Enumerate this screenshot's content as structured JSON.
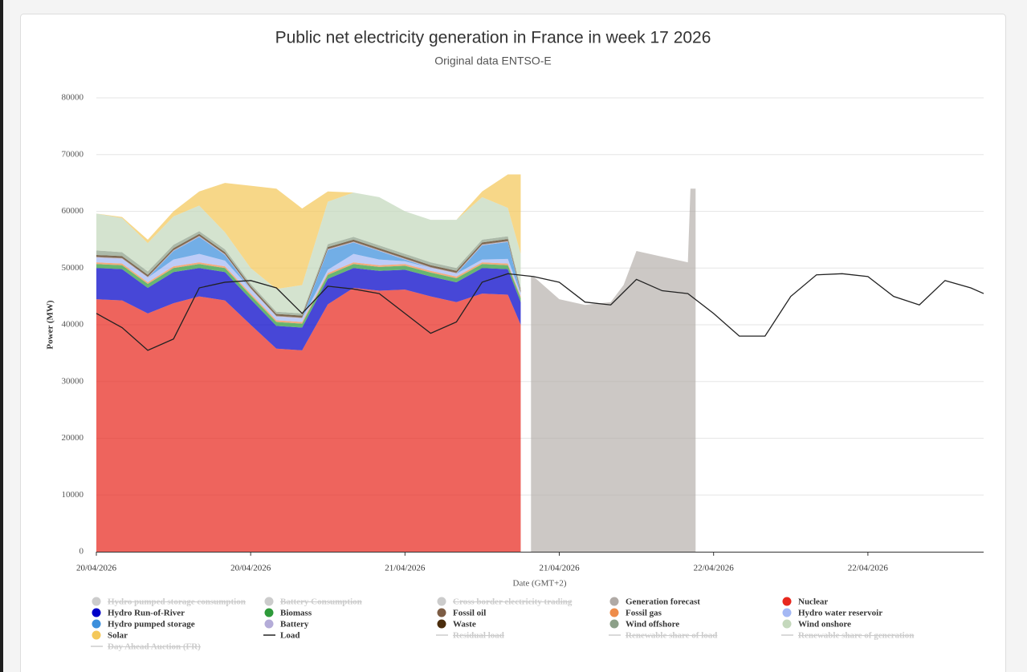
{
  "chart_data": {
    "type": "stacked_area",
    "title": "Public net electricity generation in France in week 17 2026",
    "subtitle": "Original data ENTSO-E",
    "y_label": "Power (MW)",
    "x_label": "Date (GMT+2)",
    "ylim": [
      0,
      80000
    ],
    "yticks": [
      0,
      10000,
      20000,
      30000,
      40000,
      50000,
      60000,
      70000,
      80000
    ],
    "xlim": [
      0,
      69
    ],
    "xticks": [
      {
        "value": 0,
        "label": "20/04/2026"
      },
      {
        "value": 12,
        "label": "20/04/2026"
      },
      {
        "value": 24,
        "label": "21/04/2026"
      },
      {
        "value": 36,
        "label": "21/04/2026"
      },
      {
        "value": 48,
        "label": "22/04/2026"
      },
      {
        "value": 60,
        "label": "22/04/2026"
      }
    ],
    "grid": true,
    "x": [
      0,
      2,
      4,
      6,
      8,
      10,
      12,
      14,
      16,
      18,
      20,
      22,
      24,
      26,
      28,
      30,
      32,
      33
    ],
    "series": [
      {
        "name": "Nuclear",
        "color": "#e8281e",
        "values": [
          44500,
          44300,
          42000,
          43800,
          45000,
          44300,
          40000,
          35800,
          35500,
          43600,
          46500,
          46000,
          46200,
          45000,
          44000,
          45500,
          45300,
          40000
        ]
      },
      {
        "name": "Hydro Run-of-River",
        "color": "#0000c8",
        "values": [
          5500,
          5500,
          4500,
          5500,
          5000,
          5000,
          4500,
          4000,
          4000,
          4500,
          3500,
          3500,
          3500,
          3500,
          3500,
          4500,
          4500,
          4000
        ]
      },
      {
        "name": "Biomass",
        "color": "#2e9a3a",
        "values": [
          700,
          700,
          700,
          700,
          700,
          700,
          700,
          700,
          700,
          700,
          700,
          700,
          700,
          700,
          700,
          700,
          700,
          700
        ]
      },
      {
        "name": "Fossil gas",
        "color": "#ee8c4a",
        "values": [
          300,
          300,
          300,
          300,
          300,
          300,
          300,
          300,
          300,
          300,
          300,
          300,
          300,
          300,
          300,
          300,
          300,
          300
        ]
      },
      {
        "name": "Hydro water reservoir",
        "color": "#a4b8f4",
        "values": [
          800,
          800,
          800,
          1200,
          1500,
          1000,
          800,
          600,
          600,
          600,
          1500,
          1000,
          500,
          500,
          500,
          500,
          800,
          500
        ]
      },
      {
        "name": "Hydro pumped storage",
        "color": "#3c8fdc",
        "values": [
          0,
          0,
          0,
          1500,
          3000,
          1000,
          0,
          0,
          0,
          3500,
          2000,
          1500,
          300,
          0,
          0,
          2500,
          3000,
          0
        ]
      },
      {
        "name": "Battery",
        "color": "#b4acd8",
        "values": [
          100,
          100,
          100,
          100,
          100,
          100,
          100,
          100,
          100,
          100,
          100,
          100,
          100,
          100,
          100,
          100,
          100,
          100
        ]
      },
      {
        "name": "Fossil oil",
        "color": "#7c5c44",
        "values": [
          100,
          100,
          100,
          100,
          100,
          100,
          100,
          100,
          100,
          100,
          100,
          100,
          100,
          100,
          100,
          100,
          100,
          100
        ]
      },
      {
        "name": "Waste",
        "color": "#4a2c0c",
        "values": [
          300,
          300,
          300,
          300,
          300,
          300,
          300,
          300,
          300,
          300,
          300,
          300,
          300,
          300,
          300,
          300,
          300,
          300
        ]
      },
      {
        "name": "Wind offshore",
        "color": "#8ca088",
        "values": [
          800,
          700,
          600,
          600,
          500,
          500,
          400,
          400,
          400,
          500,
          500,
          500,
          500,
          500,
          500,
          500,
          500,
          500
        ]
      },
      {
        "name": "Wind onshore",
        "color": "#c4d8bc",
        "values": [
          6500,
          6000,
          5000,
          5000,
          4500,
          3000,
          2800,
          4000,
          5000,
          7500,
          7800,
          8500,
          7500,
          7500,
          8500,
          7500,
          5000,
          6000
        ]
      },
      {
        "name": "Solar",
        "color": "#f4c85a",
        "values": [
          0,
          200,
          600,
          900,
          2500,
          8700,
          14500,
          17700,
          13500,
          1800,
          0,
          0,
          0,
          0,
          0,
          1000,
          5900,
          14000
        ]
      }
    ],
    "forecast": {
      "name": "Generation forecast",
      "color": "#b0aaa6",
      "x": [
        33.8,
        34,
        36,
        38,
        40,
        41,
        42,
        44,
        46,
        46.2,
        46.6
      ],
      "values": [
        48500,
        48500,
        44500,
        43500,
        44000,
        47000,
        53000,
        52000,
        51000,
        64000,
        64000
      ]
    },
    "load": {
      "name": "Load",
      "color": "#222222",
      "x": [
        0,
        2,
        4,
        6,
        8,
        10,
        12,
        14,
        16,
        18,
        20,
        22,
        24,
        26,
        28,
        30,
        32,
        34,
        36,
        38,
        40,
        42,
        44,
        46,
        48,
        50,
        52,
        54,
        56,
        58,
        60,
        62,
        64,
        66,
        68,
        69
      ],
      "values": [
        42000,
        39500,
        35500,
        37500,
        46500,
        47500,
        47800,
        46500,
        42000,
        46800,
        46300,
        45500,
        42000,
        38500,
        40500,
        47500,
        49000,
        48500,
        47500,
        44000,
        43500,
        48000,
        46000,
        45500,
        42000,
        38000,
        38000,
        45000,
        48800,
        49000,
        48500,
        45000,
        43500,
        47800,
        46500,
        45500
      ]
    },
    "legend": [
      {
        "name": "Hydro pumped storage consumption",
        "color": "#cccccc",
        "symbol": "dot",
        "hidden": true
      },
      {
        "name": "Battery Consumption",
        "color": "#cccccc",
        "symbol": "dot",
        "hidden": true
      },
      {
        "name": "Cross border electricity trading",
        "color": "#cccccc",
        "symbol": "dot",
        "hidden": true
      },
      {
        "name": "Generation forecast",
        "color": "#b0aaa6",
        "symbol": "dot",
        "hidden": false
      },
      {
        "name": "Nuclear",
        "color": "#e8281e",
        "symbol": "dot",
        "hidden": false
      },
      {
        "name": "Hydro Run-of-River",
        "color": "#0000c8",
        "symbol": "dot",
        "hidden": false
      },
      {
        "name": "Biomass",
        "color": "#2e9a3a",
        "symbol": "dot",
        "hidden": false
      },
      {
        "name": "Fossil oil",
        "color": "#7c5c44",
        "symbol": "dot",
        "hidden": false
      },
      {
        "name": "Fossil gas",
        "color": "#ee8c4a",
        "symbol": "dot",
        "hidden": false
      },
      {
        "name": "Hydro water reservoir",
        "color": "#a4b8f4",
        "symbol": "dot",
        "hidden": false
      },
      {
        "name": "Hydro pumped storage",
        "color": "#3c8fdc",
        "symbol": "dot",
        "hidden": false
      },
      {
        "name": "Battery",
        "color": "#b4acd8",
        "symbol": "dot",
        "hidden": false
      },
      {
        "name": "Waste",
        "color": "#4a2c0c",
        "symbol": "dot",
        "hidden": false
      },
      {
        "name": "Wind offshore",
        "color": "#8ca088",
        "symbol": "dot",
        "hidden": false
      },
      {
        "name": "Wind onshore",
        "color": "#c4d8bc",
        "symbol": "dot",
        "hidden": false
      },
      {
        "name": "Solar",
        "color": "#f4c85a",
        "symbol": "dot",
        "hidden": false
      },
      {
        "name": "Load",
        "color": "#222222",
        "symbol": "line",
        "hidden": false
      },
      {
        "name": "Residual load",
        "color": "#cccccc",
        "symbol": "line",
        "hidden": true
      },
      {
        "name": "Renewable share of load",
        "color": "#cccccc",
        "symbol": "line",
        "hidden": true
      },
      {
        "name": "Renewable share of generation",
        "color": "#cccccc",
        "symbol": "line",
        "hidden": true
      },
      {
        "name": "Day Ahead Auction (FR)",
        "color": "#cccccc",
        "symbol": "line",
        "hidden": true
      }
    ]
  }
}
